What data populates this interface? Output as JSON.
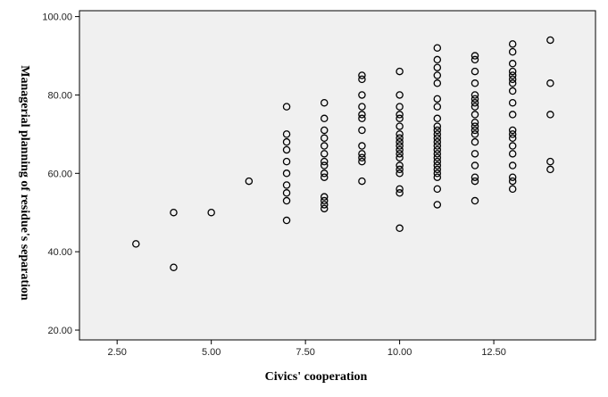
{
  "chart_data": {
    "type": "scatter",
    "title": "",
    "xlabel": "Civics' cooperation",
    "ylabel": "Managerial planning of residue's separation",
    "xlim": [
      1.5,
      15.2
    ],
    "ylim": [
      17.5,
      101.5
    ],
    "x_ticks": [
      {
        "value": 2.5,
        "label": "2.50"
      },
      {
        "value": 5,
        "label": "5.00"
      },
      {
        "value": 7.5,
        "label": "7.50"
      },
      {
        "value": 10,
        "label": "10.00"
      },
      {
        "value": 12.5,
        "label": "12.50"
      }
    ],
    "y_ticks": [
      {
        "value": 20,
        "label": "20.00"
      },
      {
        "value": 40,
        "label": "40.00"
      },
      {
        "value": 60,
        "label": "60.00"
      },
      {
        "value": 80,
        "label": "80.00"
      },
      {
        "value": 100,
        "label": "100.00"
      }
    ],
    "grid": false,
    "legend": "none",
    "plot_background": "#f0f0f0",
    "marker": "hollow-circle",
    "marker_color": "#000000",
    "points": [
      [
        3,
        42
      ],
      [
        4,
        50
      ],
      [
        4,
        36
      ],
      [
        5,
        50
      ],
      [
        6,
        58
      ],
      [
        7,
        77
      ],
      [
        7,
        70
      ],
      [
        7,
        68
      ],
      [
        7,
        66
      ],
      [
        7,
        63
      ],
      [
        7,
        60
      ],
      [
        7,
        57
      ],
      [
        7,
        55
      ],
      [
        7,
        53
      ],
      [
        7,
        48
      ],
      [
        8,
        78
      ],
      [
        8,
        74
      ],
      [
        8,
        71
      ],
      [
        8,
        69
      ],
      [
        8,
        67
      ],
      [
        8,
        65
      ],
      [
        8,
        63
      ],
      [
        8,
        62
      ],
      [
        8,
        60
      ],
      [
        8,
        59
      ],
      [
        8,
        54
      ],
      [
        8,
        53
      ],
      [
        8,
        52
      ],
      [
        8,
        51
      ],
      [
        9,
        85
      ],
      [
        9,
        84
      ],
      [
        9,
        80
      ],
      [
        9,
        77
      ],
      [
        9,
        75
      ],
      [
        9,
        74
      ],
      [
        9,
        71
      ],
      [
        9,
        67
      ],
      [
        9,
        65
      ],
      [
        9,
        64
      ],
      [
        9,
        63
      ],
      [
        9,
        58
      ],
      [
        10,
        86
      ],
      [
        10,
        80
      ],
      [
        10,
        77
      ],
      [
        10,
        75
      ],
      [
        10,
        74
      ],
      [
        10,
        72
      ],
      [
        10,
        70
      ],
      [
        10,
        69
      ],
      [
        10,
        68
      ],
      [
        10,
        67
      ],
      [
        10,
        66
      ],
      [
        10,
        65
      ],
      [
        10,
        64
      ],
      [
        10,
        62
      ],
      [
        10,
        61
      ],
      [
        10,
        60
      ],
      [
        10,
        56
      ],
      [
        10,
        55
      ],
      [
        10,
        46
      ],
      [
        11,
        92
      ],
      [
        11,
        89
      ],
      [
        11,
        87
      ],
      [
        11,
        85
      ],
      [
        11,
        83
      ],
      [
        11,
        79
      ],
      [
        11,
        77
      ],
      [
        11,
        74
      ],
      [
        11,
        72
      ],
      [
        11,
        71
      ],
      [
        11,
        70
      ],
      [
        11,
        69
      ],
      [
        11,
        68
      ],
      [
        11,
        67
      ],
      [
        11,
        66
      ],
      [
        11,
        65
      ],
      [
        11,
        64
      ],
      [
        11,
        63
      ],
      [
        11,
        62
      ],
      [
        11,
        61
      ],
      [
        11,
        60
      ],
      [
        11,
        59
      ],
      [
        11,
        56
      ],
      [
        11,
        52
      ],
      [
        12,
        90
      ],
      [
        12,
        89
      ],
      [
        12,
        86
      ],
      [
        12,
        83
      ],
      [
        12,
        80
      ],
      [
        12,
        79
      ],
      [
        12,
        78
      ],
      [
        12,
        77
      ],
      [
        12,
        75
      ],
      [
        12,
        73
      ],
      [
        12,
        72
      ],
      [
        12,
        71
      ],
      [
        12,
        70
      ],
      [
        12,
        68
      ],
      [
        12,
        65
      ],
      [
        12,
        62
      ],
      [
        12,
        59
      ],
      [
        12,
        58
      ],
      [
        12,
        53
      ],
      [
        13,
        93
      ],
      [
        13,
        91
      ],
      [
        13,
        88
      ],
      [
        13,
        86
      ],
      [
        13,
        85
      ],
      [
        13,
        84
      ],
      [
        13,
        83
      ],
      [
        13,
        81
      ],
      [
        13,
        78
      ],
      [
        13,
        75
      ],
      [
        13,
        71
      ],
      [
        13,
        70
      ],
      [
        13,
        69
      ],
      [
        13,
        67
      ],
      [
        13,
        65
      ],
      [
        13,
        62
      ],
      [
        13,
        59
      ],
      [
        13,
        58
      ],
      [
        13,
        56
      ],
      [
        14,
        94
      ],
      [
        14,
        83
      ],
      [
        14,
        75
      ],
      [
        14,
        63
      ],
      [
        14,
        61
      ]
    ]
  }
}
